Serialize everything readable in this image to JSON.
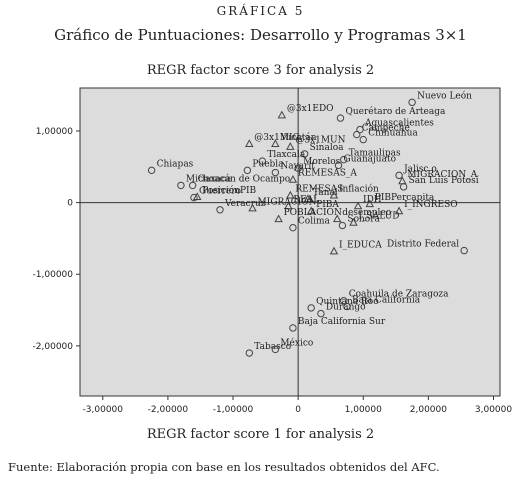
{
  "figure_label": "GRÁFICA 5",
  "title": "Gráfico de Puntuaciones: Desarrollo y Programas 3×1",
  "source_note": "Fuente: Elaboración propia con base en los resultados obtenidos del AFC.",
  "colors": {
    "plot_bg": "#dcdcdc",
    "axes": "#333333",
    "marker": "#444444"
  },
  "chart_data": {
    "type": "scatter",
    "title": "REGR factor score   3 for analysis 2",
    "xlabel": "REGR factor score   1 for analysis 2",
    "ylabel": "",
    "xlim": [
      -3.35,
      3.1
    ],
    "ylim": [
      -2.7,
      1.6
    ],
    "xticks": [
      -3,
      -2,
      -1,
      0,
      1,
      2,
      3
    ],
    "xtick_labels": [
      "-3,00000",
      "-2,00000",
      "-1,00000",
      "0",
      "1,00000",
      "2,00000",
      "3,00000"
    ],
    "yticks": [
      1,
      0,
      -1,
      -2
    ],
    "ytick_labels": [
      "1,00000",
      "0",
      "-1,00000",
      "-2,00000"
    ],
    "grid": false,
    "reference_lines": {
      "x": 0,
      "y": 0
    },
    "series": [
      {
        "marker": "circle",
        "points": [
          {
            "label": "Nuevo León",
            "x": 1.75,
            "y": 1.4
          },
          {
            "label": "Querétaro de Arteaga",
            "x": 0.65,
            "y": 1.18
          },
          {
            "label": "Campeche",
            "x": 0.9,
            "y": 0.95
          },
          {
            "label": "Aguascalientes",
            "x": 0.95,
            "y": 1.02
          },
          {
            "label": "Chihuahua",
            "x": 1.0,
            "y": 0.88
          },
          {
            "label": "Sinaloa",
            "x": 0.1,
            "y": 0.68
          },
          {
            "label": "Tamaulipas",
            "x": 0.7,
            "y": 0.6
          },
          {
            "label": "Morelos",
            "x": 0.0,
            "y": 0.48
          },
          {
            "label": "Guanajuato",
            "x": 0.62,
            "y": 0.52
          },
          {
            "label": "Tlaxcala",
            "x": -0.55,
            "y": 0.58
          },
          {
            "label": "Nayarit",
            "x": -0.35,
            "y": 0.42
          },
          {
            "label": "Puebla",
            "x": -0.78,
            "y": 0.45
          },
          {
            "label": "Chiapas",
            "x": -2.25,
            "y": 0.45
          },
          {
            "label": "Michoacán de Ocampo",
            "x": -1.8,
            "y": 0.24
          },
          {
            "label": "Oaxaca",
            "x": -1.62,
            "y": 0.24
          },
          {
            "label": "Guerrero",
            "x": -1.6,
            "y": 0.07
          },
          {
            "label": "Veracruz",
            "x": -1.2,
            "y": -0.1
          },
          {
            "label": "Jalisc o",
            "x": 1.55,
            "y": 0.38
          },
          {
            "label": "San Luis Potosí",
            "x": 1.62,
            "y": 0.22
          },
          {
            "label": "Colima",
            "x": -0.08,
            "y": -0.35
          },
          {
            "label": "Sonora",
            "x": 0.68,
            "y": -0.32
          },
          {
            "label": "Distrito Federal",
            "x": 2.55,
            "y": -0.67
          },
          {
            "label": "Coahuila de Zaragoza",
            "x": 0.7,
            "y": -1.37
          },
          {
            "label": "Quintana Roo",
            "x": 0.2,
            "y": -1.47
          },
          {
            "label": "Baja California",
            "x": 0.75,
            "y": -1.45
          },
          {
            "label": "Durango",
            "x": 0.35,
            "y": -1.55
          },
          {
            "label": "Baja California Sur",
            "x": -0.08,
            "y": -1.75
          },
          {
            "label": "Tabasco",
            "x": -0.75,
            "y": -2.1
          },
          {
            "label": "México",
            "x": -0.35,
            "y": -2.05
          }
        ]
      },
      {
        "marker": "triangle",
        "points": [
          {
            "label": "@3x1EDO",
            "x": -0.25,
            "y": 1.22
          },
          {
            "label": "@3x1MIC",
            "x": -0.75,
            "y": 0.82
          },
          {
            "label": "@3x1MUN",
            "x": -0.12,
            "y": 0.78
          },
          {
            "label": "Yucatán",
            "x": -0.35,
            "y": 0.82
          },
          {
            "label": "REMESAS_A",
            "x": -0.08,
            "y": 0.32
          },
          {
            "label": "MIGRACION_A",
            "x": 1.6,
            "y": 0.3
          },
          {
            "label": "PosiciónPIB",
            "x": -1.55,
            "y": 0.08
          },
          {
            "label": "REMESAS",
            "x": -0.12,
            "y": 0.1
          },
          {
            "label": "Tanal",
            "x": 0.15,
            "y": 0.05
          },
          {
            "label": "Inflación",
            "x": 0.55,
            "y": 0.1
          },
          {
            "label": "MIGRACION",
            "x": -0.7,
            "y": -0.08
          },
          {
            "label": "REAL",
            "x": -0.15,
            "y": -0.05
          },
          {
            "label": "PIBA",
            "x": 0.2,
            "y": -0.12
          },
          {
            "label": "IDH",
            "x": 0.92,
            "y": -0.05
          },
          {
            "label": "PIBPercapita",
            "x": 1.1,
            "y": -0.02
          },
          {
            "label": "I_INGRESO",
            "x": 1.55,
            "y": -0.12
          },
          {
            "label": "POBLACION",
            "x": -0.3,
            "y": -0.23
          },
          {
            "label": "desempleo",
            "x": 0.6,
            "y": -0.23
          },
          {
            "label": "I_SALUD",
            "x": 0.85,
            "y": -0.28
          },
          {
            "label": "I_EDUCA",
            "x": 0.55,
            "y": -0.68
          }
        ]
      }
    ]
  }
}
